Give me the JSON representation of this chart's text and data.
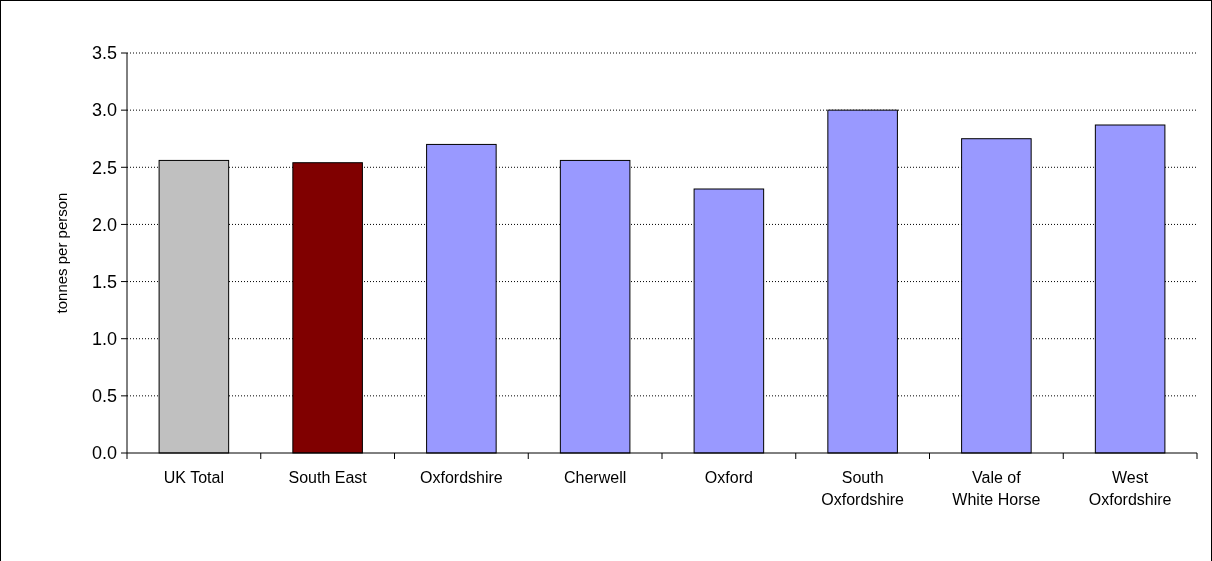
{
  "chart_data": {
    "type": "bar",
    "ylabel": "tonnes per person",
    "categories": [
      "UK Total",
      "South East",
      "Oxfordshire",
      "Cherwell",
      "Oxford",
      "South Oxfordshire",
      "Vale of White Horse",
      "West Oxfordshire"
    ],
    "values": [
      2.56,
      2.54,
      2.7,
      2.56,
      2.31,
      3.0,
      2.75,
      2.87
    ],
    "colors": [
      "#c0c0c0",
      "#800000",
      "#9999ff",
      "#9999ff",
      "#9999ff",
      "#9999ff",
      "#9999ff",
      "#9999ff"
    ],
    "ylim": [
      0,
      3.5
    ],
    "yticks": [
      {
        "value": 0,
        "label": "0.0"
      },
      0.5,
      {
        "value": 1,
        "label": "1.0"
      },
      1.5,
      {
        "value": 2,
        "label": "2.0"
      },
      2.5,
      {
        "value": 3,
        "label": "3.0"
      },
      3.5
    ],
    "grid": "y"
  }
}
